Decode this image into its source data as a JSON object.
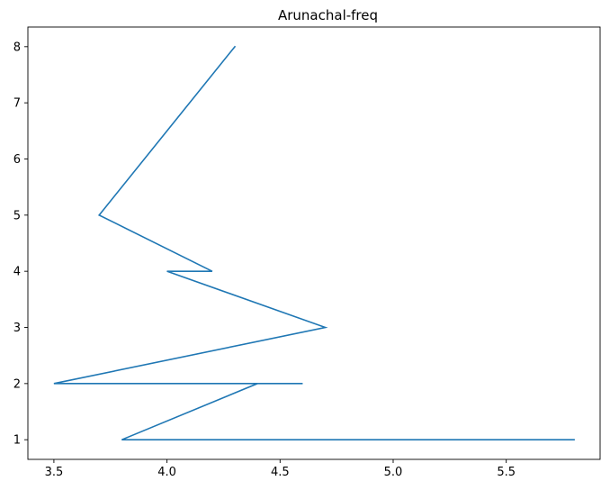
{
  "chart_data": {
    "type": "line",
    "title": "Arunachal-freq",
    "xlabel": "",
    "ylabel": "",
    "xlim": [
      3.385,
      5.915
    ],
    "ylim": [
      0.65,
      8.35
    ],
    "xticks": [
      3.5,
      4.0,
      4.5,
      5.0,
      5.5
    ],
    "xtick_labels": [
      "3.5",
      "4.0",
      "4.5",
      "5.0",
      "5.5"
    ],
    "yticks": [
      1,
      2,
      3,
      4,
      5,
      6,
      7,
      8
    ],
    "ytick_labels": [
      "1",
      "2",
      "3",
      "4",
      "5",
      "6",
      "7",
      "8"
    ],
    "grid": false,
    "series": [
      {
        "color": "#1f77b4",
        "x": [
          4.3,
          3.7,
          4.2,
          4.0,
          4.7,
          3.5,
          4.6,
          4.4,
          3.8,
          5.8,
          5.0,
          5.8
        ],
        "y": [
          8,
          5,
          4,
          4,
          3,
          2,
          2,
          2,
          1,
          1,
          1,
          1
        ]
      }
    ]
  }
}
